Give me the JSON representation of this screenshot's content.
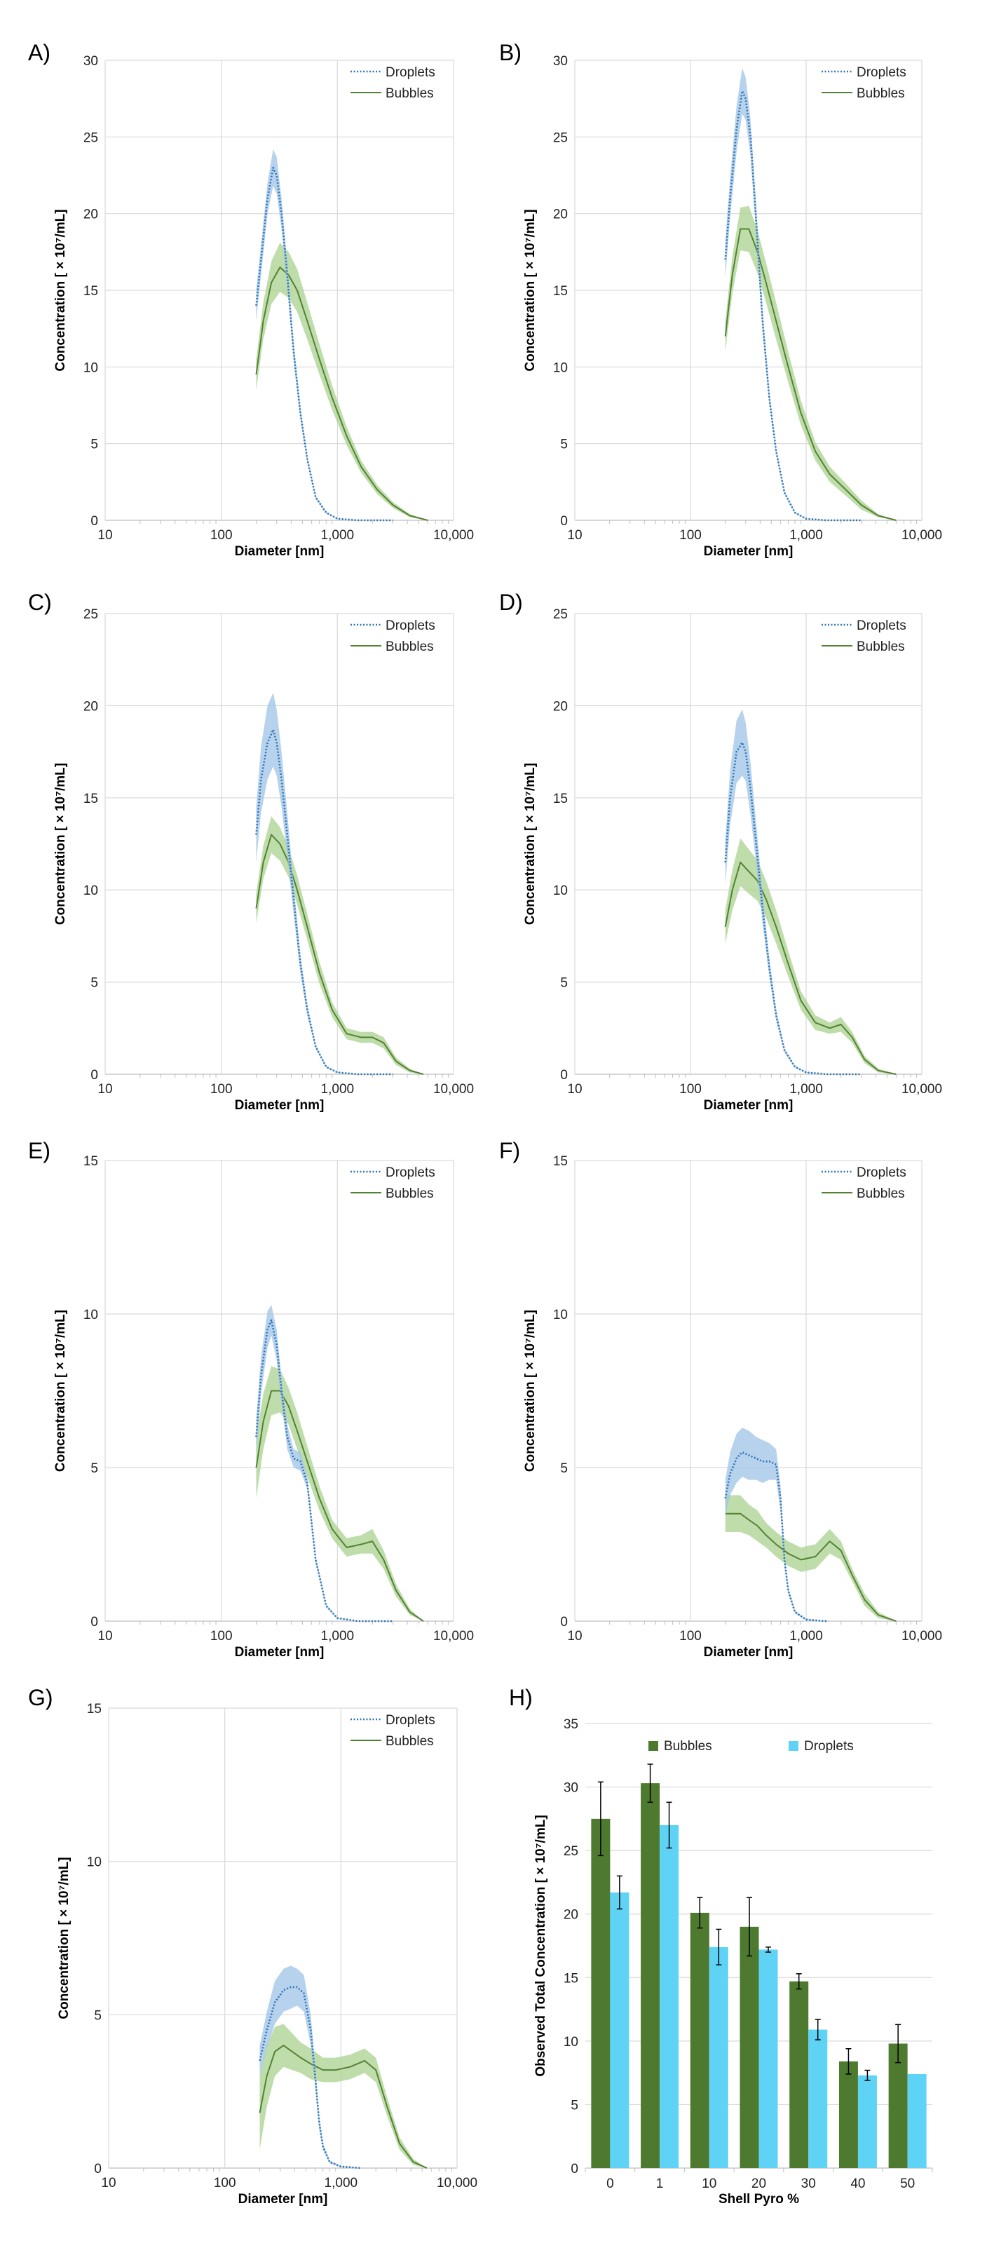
{
  "colors": {
    "droplets": "#2e75b6",
    "droplets_band": "#9dc3e6",
    "bubbles": "#548235",
    "bubbles_band": "#a9d18e",
    "bar_bubbles": "#4e7a2f",
    "bar_droplets": "#5fd3f5",
    "grid": "#d9d9d9"
  },
  "chart_data": [
    {
      "id": "A",
      "label": "A)",
      "type": "line",
      "xlabel": "Diameter [nm]",
      "ylabel": "Concentration [ × 10⁷/mL]",
      "xscale": "log",
      "xlim": [
        10,
        10000
      ],
      "ylim": [
        0,
        30
      ],
      "xticks": [
        "10",
        "100",
        "1,000",
        "10,000"
      ],
      "yticks": [
        0,
        5,
        10,
        15,
        20,
        25,
        30
      ],
      "legend": [
        "Droplets",
        "Bubbles"
      ],
      "series": [
        {
          "name": "Droplets",
          "style": "dotted",
          "x": [
            200,
            220,
            250,
            280,
            300,
            330,
            370,
            420,
            480,
            550,
            650,
            800,
            1000,
            1500,
            3000
          ],
          "y": [
            14,
            17,
            21,
            23,
            22.5,
            20,
            16,
            11,
            7,
            4,
            1.5,
            0.5,
            0.1,
            0,
            0
          ],
          "band": [
            1.0,
            1.0,
            1.0,
            1.2,
            1.2,
            1.0,
            0.8,
            0.6,
            0.4,
            0.2,
            0.1,
            0.05,
            0.02,
            0,
            0
          ]
        },
        {
          "name": "Bubbles",
          "style": "solid",
          "x": [
            200,
            230,
            270,
            320,
            380,
            450,
            550,
            700,
            900,
            1200,
            1600,
            2200,
            3000,
            4200,
            6000
          ],
          "y": [
            9.5,
            13,
            15.5,
            16.5,
            16,
            15,
            13,
            10.5,
            8,
            5.5,
            3.5,
            2,
            1,
            0.3,
            0
          ],
          "band": [
            1.0,
            1.2,
            1.4,
            1.6,
            1.5,
            1.4,
            1.2,
            1.0,
            0.8,
            0.6,
            0.4,
            0.3,
            0.2,
            0.1,
            0
          ]
        }
      ]
    },
    {
      "id": "B",
      "label": "B)",
      "type": "line",
      "xlabel": "Diameter [nm]",
      "ylabel": "Concentration [ × 10⁷/mL]",
      "xscale": "log",
      "xlim": [
        10,
        10000
      ],
      "ylim": [
        0,
        30
      ],
      "xticks": [
        "10",
        "100",
        "1,000",
        "10,000"
      ],
      "yticks": [
        0,
        5,
        10,
        15,
        20,
        25,
        30
      ],
      "legend": [
        "Droplets",
        "Bubbles"
      ],
      "series": [
        {
          "name": "Droplets",
          "style": "dotted",
          "x": [
            200,
            220,
            250,
            280,
            300,
            330,
            370,
            420,
            480,
            550,
            650,
            800,
            1000,
            1500,
            3000
          ],
          "y": [
            17,
            21,
            25.5,
            28,
            27.5,
            25,
            19.5,
            13,
            8,
            4.5,
            1.8,
            0.5,
            0.1,
            0,
            0
          ],
          "band": [
            1.2,
            1.3,
            1.5,
            1.5,
            1.4,
            1.2,
            1.0,
            0.7,
            0.4,
            0.2,
            0.1,
            0.05,
            0.02,
            0,
            0
          ]
        },
        {
          "name": "Bubbles",
          "style": "solid",
          "x": [
            200,
            230,
            270,
            320,
            380,
            450,
            550,
            700,
            900,
            1200,
            1600,
            2200,
            3000,
            4200,
            6000
          ],
          "y": [
            12,
            16,
            19,
            19,
            17.5,
            15.5,
            13,
            10,
            7,
            4.5,
            3,
            2,
            1,
            0.3,
            0
          ],
          "band": [
            1.0,
            1.2,
            1.4,
            1.5,
            1.4,
            1.3,
            1.2,
            1.0,
            0.8,
            0.6,
            0.5,
            0.4,
            0.3,
            0.1,
            0
          ]
        }
      ]
    },
    {
      "id": "C",
      "label": "C)",
      "type": "line",
      "xlabel": "Diameter [nm]",
      "ylabel": "Concentration [ × 10⁷/mL]",
      "xscale": "log",
      "xlim": [
        10,
        10000
      ],
      "ylim": [
        0,
        25
      ],
      "xticks": [
        "10",
        "100",
        "1,000",
        "10,000"
      ],
      "yticks": [
        0,
        5,
        10,
        15,
        20,
        25
      ],
      "legend": [
        "Droplets",
        "Bubbles"
      ],
      "series": [
        {
          "name": "Droplets",
          "style": "dotted",
          "x": [
            200,
            220,
            250,
            280,
            300,
            330,
            370,
            420,
            480,
            550,
            650,
            800,
            1000,
            1500,
            3000
          ],
          "y": [
            13,
            16,
            18,
            18.7,
            18,
            16,
            13,
            9.5,
            6,
            3.5,
            1.5,
            0.4,
            0.1,
            0,
            0
          ],
          "band": [
            1.5,
            1.8,
            2.0,
            2.0,
            1.8,
            1.5,
            1.2,
            0.8,
            0.5,
            0.3,
            0.1,
            0.05,
            0.02,
            0,
            0
          ]
        },
        {
          "name": "Bubbles",
          "style": "solid",
          "x": [
            200,
            230,
            270,
            320,
            380,
            450,
            550,
            700,
            900,
            1200,
            1600,
            2000,
            2500,
            3200,
            4200,
            5500
          ],
          "y": [
            9,
            11.5,
            13,
            12.5,
            11.5,
            10,
            8,
            5.5,
            3.5,
            2.2,
            2,
            2,
            1.7,
            0.7,
            0.2,
            0
          ],
          "band": [
            0.8,
            0.9,
            1.0,
            0.9,
            0.8,
            0.8,
            0.7,
            0.6,
            0.4,
            0.3,
            0.3,
            0.3,
            0.3,
            0.2,
            0.1,
            0
          ]
        }
      ]
    },
    {
      "id": "D",
      "label": "D)",
      "type": "line",
      "xlabel": "Diameter [nm]",
      "ylabel": "Concentration [ × 10⁷/mL]",
      "xscale": "log",
      "xlim": [
        10,
        10000
      ],
      "ylim": [
        0,
        25
      ],
      "xticks": [
        "10",
        "100",
        "1,000",
        "10,000"
      ],
      "yticks": [
        0,
        5,
        10,
        15,
        20,
        25
      ],
      "legend": [
        "Droplets",
        "Bubbles"
      ],
      "series": [
        {
          "name": "Droplets",
          "style": "dotted",
          "x": [
            200,
            220,
            250,
            280,
            300,
            330,
            370,
            420,
            480,
            550,
            650,
            800,
            1000,
            1500,
            3000
          ],
          "y": [
            11.5,
            15,
            17.5,
            18,
            17.5,
            15.5,
            12.5,
            9,
            5.8,
            3.2,
            1.3,
            0.4,
            0.1,
            0,
            0
          ],
          "band": [
            1.2,
            1.5,
            1.7,
            1.8,
            1.6,
            1.4,
            1.1,
            0.8,
            0.5,
            0.3,
            0.1,
            0.05,
            0.02,
            0,
            0
          ]
        },
        {
          "name": "Bubbles",
          "style": "solid",
          "x": [
            200,
            230,
            270,
            320,
            380,
            450,
            550,
            700,
            900,
            1200,
            1600,
            2000,
            2500,
            3200,
            4200,
            6000
          ],
          "y": [
            8,
            10,
            11.5,
            11,
            10.5,
            9.5,
            8,
            6,
            4,
            2.8,
            2.5,
            2.7,
            2,
            0.8,
            0.2,
            0
          ],
          "band": [
            0.9,
            1.1,
            1.3,
            1.2,
            1.1,
            1.0,
            0.9,
            0.7,
            0.5,
            0.4,
            0.3,
            0.4,
            0.3,
            0.2,
            0.1,
            0
          ]
        }
      ]
    },
    {
      "id": "E",
      "label": "E)",
      "type": "line",
      "xlabel": "Diameter [nm]",
      "ylabel": "Concentration [ × 10⁷/mL]",
      "xscale": "log",
      "xlim": [
        10,
        10000
      ],
      "ylim": [
        0,
        15
      ],
      "xticks": [
        "10",
        "100",
        "1,000",
        "10,000"
      ],
      "yticks": [
        0,
        5,
        10,
        15
      ],
      "legend": [
        "Droplets",
        "Bubbles"
      ],
      "series": [
        {
          "name": "Droplets",
          "style": "dotted",
          "x": [
            200,
            220,
            250,
            270,
            300,
            330,
            370,
            420,
            480,
            550,
            650,
            800,
            1000,
            1500,
            3000
          ],
          "y": [
            6,
            8,
            9.5,
            9.8,
            9,
            7.5,
            6,
            5.3,
            5.2,
            4.5,
            2,
            0.5,
            0.1,
            0,
            0
          ],
          "band": [
            0.6,
            0.6,
            0.6,
            0.5,
            0.5,
            0.4,
            0.4,
            0.3,
            0.3,
            0.2,
            0.1,
            0.05,
            0.02,
            0,
            0
          ]
        },
        {
          "name": "Bubbles",
          "style": "solid",
          "x": [
            200,
            230,
            270,
            320,
            380,
            450,
            550,
            700,
            900,
            1200,
            1600,
            2000,
            2500,
            3200,
            4200,
            5500
          ],
          "y": [
            5,
            6.5,
            7.5,
            7.5,
            7,
            6.2,
            5.2,
            4,
            3,
            2.4,
            2.5,
            2.6,
            2,
            1,
            0.3,
            0
          ],
          "band": [
            1.0,
            0.9,
            0.8,
            0.7,
            0.6,
            0.6,
            0.5,
            0.4,
            0.3,
            0.3,
            0.3,
            0.4,
            0.3,
            0.2,
            0.1,
            0
          ]
        }
      ]
    },
    {
      "id": "F",
      "label": "F)",
      "type": "line",
      "xlabel": "Diameter [nm]",
      "ylabel": "Concentration [ × 10⁷/mL]",
      "xscale": "log",
      "xlim": [
        10,
        10000
      ],
      "ylim": [
        0,
        15
      ],
      "xticks": [
        "10",
        "100",
        "1,000",
        "10,000"
      ],
      "yticks": [
        0,
        5,
        10,
        15
      ],
      "legend": [
        "Droplets",
        "Bubbles"
      ],
      "series": [
        {
          "name": "Droplets",
          "style": "dotted",
          "x": [
            200,
            220,
            250,
            280,
            320,
            370,
            420,
            480,
            550,
            600,
            650,
            700,
            800,
            1000,
            1500
          ],
          "y": [
            4,
            4.8,
            5.3,
            5.5,
            5.4,
            5.3,
            5.2,
            5.2,
            5.1,
            4,
            2,
            1,
            0.3,
            0.05,
            0
          ],
          "band": [
            0.6,
            0.7,
            0.8,
            0.8,
            0.8,
            0.7,
            0.7,
            0.6,
            0.5,
            0.4,
            0.2,
            0.1,
            0.05,
            0.02,
            0
          ]
        },
        {
          "name": "Bubbles",
          "style": "solid",
          "x": [
            200,
            230,
            270,
            320,
            380,
            450,
            550,
            700,
            900,
            1200,
            1600,
            2000,
            2500,
            3200,
            4200,
            6000
          ],
          "y": [
            3.5,
            3.5,
            3.5,
            3.3,
            3.1,
            2.8,
            2.5,
            2.2,
            2,
            2.1,
            2.6,
            2.3,
            1.5,
            0.7,
            0.2,
            0
          ],
          "band": [
            0.6,
            0.6,
            0.6,
            0.5,
            0.5,
            0.4,
            0.4,
            0.4,
            0.4,
            0.4,
            0.4,
            0.3,
            0.2,
            0.2,
            0.1,
            0
          ]
        }
      ]
    },
    {
      "id": "G",
      "label": "G)",
      "type": "line",
      "xlabel": "Diameter [nm]",
      "ylabel": "Concentration [ × 10⁷/mL]",
      "xscale": "log",
      "xlim": [
        10,
        10000
      ],
      "ylim": [
        0,
        15
      ],
      "xticks": [
        "10",
        "100",
        "1,000",
        "10,000"
      ],
      "yticks": [
        0,
        5,
        10,
        15
      ],
      "legend": [
        "Droplets",
        "Bubbles"
      ],
      "series": [
        {
          "name": "Droplets",
          "style": "dotted",
          "x": [
            200,
            230,
            270,
            320,
            370,
            420,
            480,
            550,
            600,
            650,
            700,
            800,
            1000,
            1500
          ],
          "y": [
            3.5,
            4.5,
            5.4,
            5.8,
            5.9,
            5.9,
            5.7,
            4.5,
            3,
            1.5,
            0.7,
            0.2,
            0.05,
            0
          ],
          "band": [
            0.5,
            0.6,
            0.7,
            0.7,
            0.7,
            0.6,
            0.6,
            0.5,
            0.3,
            0.2,
            0.1,
            0.05,
            0.02,
            0
          ]
        },
        {
          "name": "Bubbles",
          "style": "solid",
          "x": [
            200,
            230,
            270,
            320,
            380,
            450,
            550,
            700,
            900,
            1200,
            1600,
            2000,
            2500,
            3200,
            4200,
            5500
          ],
          "y": [
            1.8,
            3,
            3.8,
            4,
            3.8,
            3.6,
            3.4,
            3.2,
            3.2,
            3.3,
            3.5,
            3.2,
            2,
            0.8,
            0.2,
            0
          ],
          "band": [
            1.2,
            1.0,
            0.8,
            0.7,
            0.6,
            0.5,
            0.5,
            0.4,
            0.4,
            0.4,
            0.4,
            0.4,
            0.3,
            0.2,
            0.1,
            0
          ]
        }
      ]
    },
    {
      "id": "H",
      "label": "H)",
      "type": "bar",
      "xlabel": "Shell Pyro %",
      "ylabel": "Observed Total Concentration [ × 10⁷/mL]",
      "ylim": [
        0,
        35
      ],
      "yticks": [
        0,
        5,
        10,
        15,
        20,
        25,
        30,
        35
      ],
      "categories": [
        "0",
        "1",
        "10",
        "20",
        "30",
        "40",
        "50"
      ],
      "legend": [
        "Bubbles",
        "Droplets"
      ],
      "series": [
        {
          "name": "Bubbles",
          "values": [
            27.5,
            30.3,
            20.1,
            19.0,
            14.7,
            8.4,
            9.8
          ],
          "errors": [
            2.9,
            1.5,
            1.2,
            2.3,
            0.6,
            1.0,
            1.5
          ]
        },
        {
          "name": "Droplets",
          "values": [
            21.7,
            27.0,
            17.4,
            17.2,
            10.9,
            7.3,
            7.4
          ],
          "errors": [
            1.3,
            1.8,
            1.4,
            0.2,
            0.8,
            0.4,
            0
          ]
        }
      ]
    }
  ]
}
